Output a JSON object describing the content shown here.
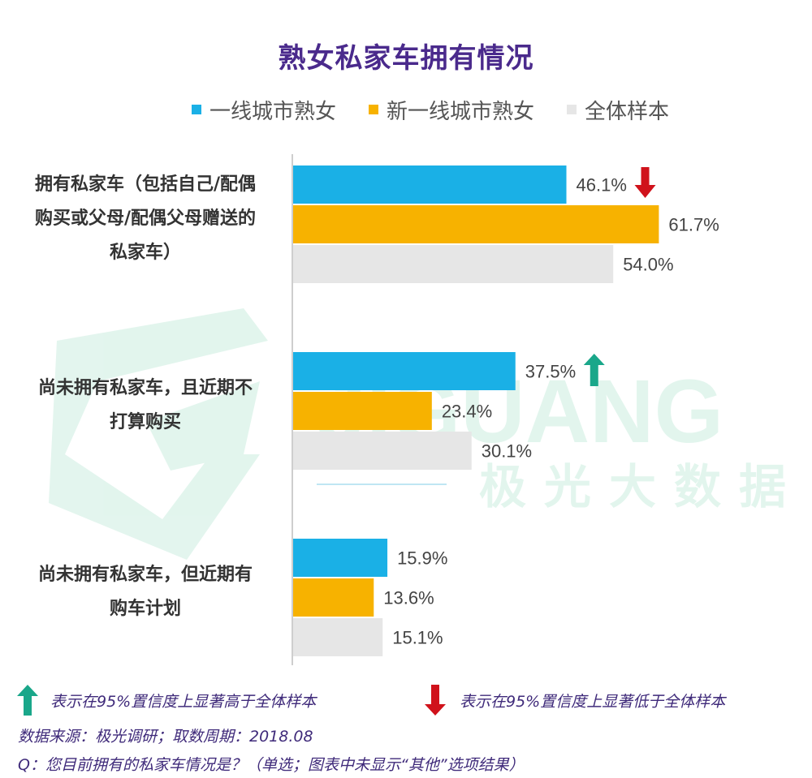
{
  "title": "熟女私家车拥有情况",
  "legend": [
    {
      "label": "一线城市熟女",
      "color": "#1ab0e6"
    },
    {
      "label": "新一线城市熟女",
      "color": "#f7b200"
    },
    {
      "label": "全体样本",
      "color": "#e6e6e6"
    }
  ],
  "chart_data": {
    "type": "bar",
    "orientation": "horizontal",
    "title": "熟女私家车拥有情况",
    "categories": [
      "拥有私家车（包括自己/配偶购买或父母/配偶父母赠送的私家车）",
      "尚未拥有私家车，且近期不打算购买",
      "尚未拥有私家车，但近期有购车计划"
    ],
    "category_lines": [
      [
        "拥有私家车（包括自己/配偶",
        "购买或父母/配偶父母赠送的",
        "私家车）"
      ],
      [
        "尚未拥有私家车，且近期不",
        "打算购买"
      ],
      [
        "尚未拥有私家车，但近期有",
        "购车计划"
      ]
    ],
    "series": [
      {
        "name": "一线城市熟女",
        "values": [
          46.1,
          37.5,
          15.9
        ],
        "labels": [
          "46.1%",
          "37.5%",
          "15.9%"
        ],
        "color": "#1ab0e6"
      },
      {
        "name": "新一线城市熟女",
        "values": [
          61.7,
          23.4,
          13.6
        ],
        "labels": [
          "61.7%",
          "23.4%",
          "13.6%"
        ],
        "color": "#f7b200"
      },
      {
        "name": "全体样本",
        "values": [
          54.0,
          30.1,
          15.1
        ],
        "labels": [
          "54.0%",
          "30.1%",
          "15.1%"
        ],
        "color": "#e6e6e6"
      }
    ],
    "significance": [
      {
        "category": 0,
        "series": 0,
        "direction": "down",
        "color": "#d0121b"
      },
      {
        "category": 1,
        "series": 0,
        "direction": "up",
        "color": "#1aa78a"
      }
    ],
    "xlim": [
      0,
      100
    ],
    "grid": false,
    "legend_position": "top"
  },
  "notes": {
    "up": {
      "text": "表示在95%置信度上显著高于全体样本",
      "icon": "up-arrow-icon",
      "color": "#1aa78a"
    },
    "down": {
      "text": "表示在95%置信度上显著低于全体样本",
      "icon": "down-arrow-icon",
      "color": "#d0121b"
    }
  },
  "source": "数据来源：极光调研；取数周期：2018.08",
  "question": "Q：您目前拥有的私家车情况是？（单选；图表中未显示“其他”选项结果）",
  "watermark": {
    "brand": "JIGUANG",
    "brand_cn": "极光大数据"
  }
}
